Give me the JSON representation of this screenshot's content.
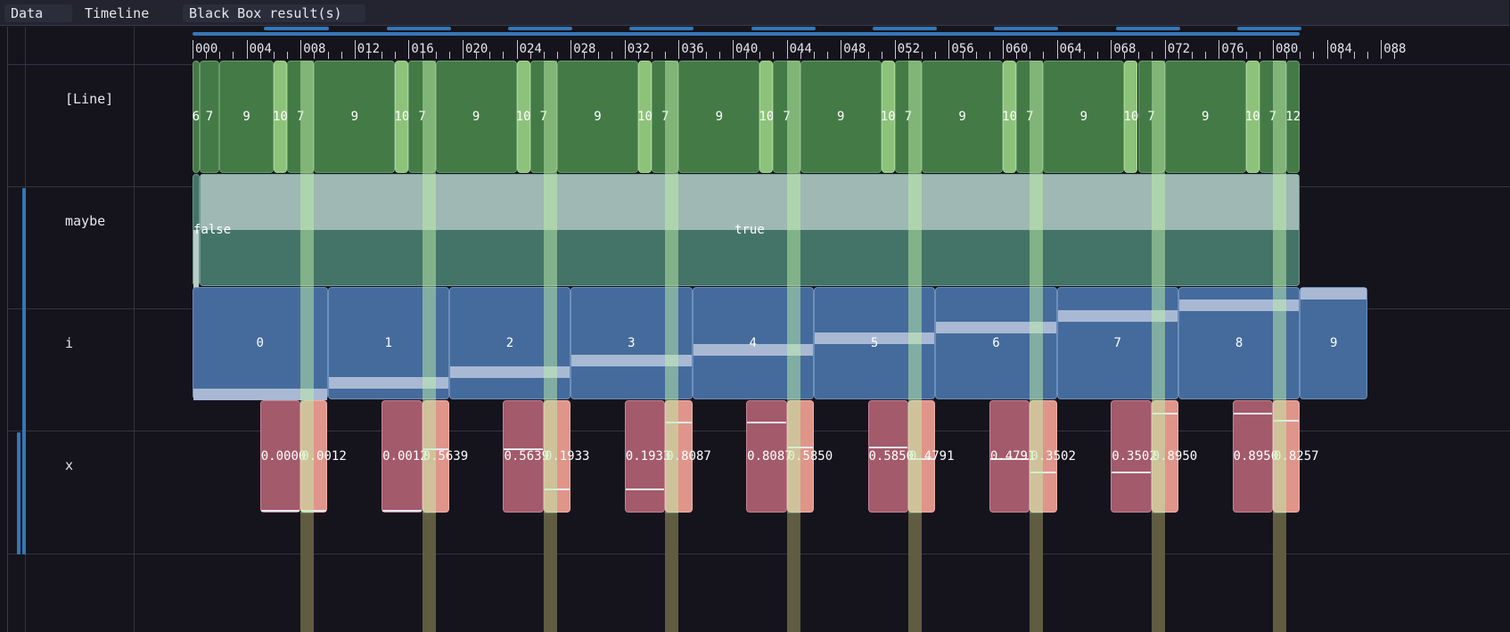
{
  "tabs": [
    {
      "label": "Data"
    },
    {
      "label": "Timeline"
    },
    {
      "label": "Black Box result(s)"
    }
  ],
  "rows": [
    {
      "label": "[Line]"
    },
    {
      "label": "maybe"
    },
    {
      "label": "i"
    },
    {
      "label": "x"
    }
  ],
  "ruler": {
    "labels": [
      "000",
      "004",
      "008",
      "012",
      "016",
      "020",
      "024",
      "028",
      "032",
      "036",
      "040",
      "044",
      "048",
      "052",
      "056",
      "060",
      "064",
      "068",
      "072",
      "076",
      "080",
      "084",
      "088"
    ]
  },
  "line_row": {
    "cells": [
      {
        "start": 0.0,
        "end": 0.5,
        "label": "6",
        "hl": false
      },
      {
        "start": 0.5,
        "end": 2.0,
        "label": "7",
        "hl": false
      },
      {
        "start": 2.0,
        "end": 6.0,
        "label": "9",
        "hl": false
      },
      {
        "start": 6.0,
        "end": 7.0,
        "label": "10",
        "hl": true
      },
      {
        "start": 7.0,
        "end": 9.0,
        "label": "7",
        "hl": false
      },
      {
        "start": 9.0,
        "end": 15.0,
        "label": "9",
        "hl": false
      },
      {
        "start": 15.0,
        "end": 16.0,
        "label": "10",
        "hl": true
      },
      {
        "start": 16.0,
        "end": 18.0,
        "label": "7",
        "hl": false
      },
      {
        "start": 18.0,
        "end": 24.0,
        "label": "9",
        "hl": false
      },
      {
        "start": 24.0,
        "end": 25.0,
        "label": "10",
        "hl": true
      },
      {
        "start": 25.0,
        "end": 27.0,
        "label": "7",
        "hl": false
      },
      {
        "start": 27.0,
        "end": 33.0,
        "label": "9",
        "hl": false
      },
      {
        "start": 33.0,
        "end": 34.0,
        "label": "10",
        "hl": true
      },
      {
        "start": 34.0,
        "end": 36.0,
        "label": "7",
        "hl": false
      },
      {
        "start": 36.0,
        "end": 42.0,
        "label": "9",
        "hl": false
      },
      {
        "start": 42.0,
        "end": 43.0,
        "label": "10",
        "hl": true
      },
      {
        "start": 43.0,
        "end": 45.0,
        "label": "7",
        "hl": false
      },
      {
        "start": 45.0,
        "end": 51.0,
        "label": "9",
        "hl": false
      },
      {
        "start": 51.0,
        "end": 52.0,
        "label": "10",
        "hl": true
      },
      {
        "start": 52.0,
        "end": 54.0,
        "label": "7",
        "hl": false
      },
      {
        "start": 54.0,
        "end": 60.0,
        "label": "9",
        "hl": false
      },
      {
        "start": 60.0,
        "end": 61.0,
        "label": "10",
        "hl": true
      },
      {
        "start": 61.0,
        "end": 63.0,
        "label": "7",
        "hl": false
      },
      {
        "start": 63.0,
        "end": 69.0,
        "label": "9",
        "hl": false
      },
      {
        "start": 69.0,
        "end": 70.0,
        "label": "10",
        "hl": true
      },
      {
        "start": 70.0,
        "end": 72.0,
        "label": "7",
        "hl": false
      },
      {
        "start": 72.0,
        "end": 78.0,
        "label": "9",
        "hl": false
      },
      {
        "start": 78.0,
        "end": 79.0,
        "label": "10",
        "hl": true
      },
      {
        "start": 79.0,
        "end": 81.0,
        "label": "7",
        "hl": false
      },
      {
        "start": 81.0,
        "end": 82.0,
        "label": "12",
        "hl": false
      }
    ]
  },
  "maybe_row": {
    "cells": [
      {
        "start": 0.0,
        "end": 0.5,
        "label": "false",
        "value": 0.0
      },
      {
        "start": 0.5,
        "end": 82.0,
        "label": "true",
        "value": 0.5
      }
    ]
  },
  "i_row": {
    "cells": [
      {
        "start": 0.0,
        "end": 10.0,
        "label": "0",
        "value": 0.0
      },
      {
        "start": 10.0,
        "end": 19.0,
        "label": "1",
        "value": 0.111
      },
      {
        "start": 19.0,
        "end": 28.0,
        "label": "2",
        "value": 0.222
      },
      {
        "start": 28.0,
        "end": 37.0,
        "label": "3",
        "value": 0.333
      },
      {
        "start": 37.0,
        "end": 46.0,
        "label": "4",
        "value": 0.444
      },
      {
        "start": 46.0,
        "end": 55.0,
        "label": "5",
        "value": 0.556
      },
      {
        "start": 55.0,
        "end": 64.0,
        "label": "6",
        "value": 0.667
      },
      {
        "start": 64.0,
        "end": 73.0,
        "label": "7",
        "value": 0.778
      },
      {
        "start": 73.0,
        "end": 82.0,
        "label": "8",
        "value": 0.889
      },
      {
        "start": 82.0,
        "end": 87.0,
        "label": "9",
        "value": 1.0
      }
    ]
  },
  "x_row": {
    "cells": [
      {
        "start": 5.0,
        "end": 8.0,
        "label": "0.0000",
        "value": 0.0,
        "hl": false
      },
      {
        "start": 8.0,
        "end": 10.0,
        "label": "0.0012",
        "value": 0.001,
        "hl": true
      },
      {
        "start": 14.0,
        "end": 17.0,
        "label": "0.0012",
        "value": 0.001,
        "hl": false
      },
      {
        "start": 17.0,
        "end": 19.0,
        "label": "0.5639",
        "value": 0.564,
        "hl": true
      },
      {
        "start": 23.0,
        "end": 26.0,
        "label": "0.5639",
        "value": 0.564,
        "hl": false
      },
      {
        "start": 26.0,
        "end": 28.0,
        "label": "0.1933",
        "value": 0.193,
        "hl": true
      },
      {
        "start": 32.0,
        "end": 35.0,
        "label": "0.1933",
        "value": 0.193,
        "hl": false
      },
      {
        "start": 35.0,
        "end": 37.0,
        "label": "0.8087",
        "value": 0.809,
        "hl": true
      },
      {
        "start": 41.0,
        "end": 44.0,
        "label": "0.8087",
        "value": 0.809,
        "hl": false
      },
      {
        "start": 44.0,
        "end": 46.0,
        "label": "0.5850",
        "value": 0.585,
        "hl": true
      },
      {
        "start": 50.0,
        "end": 53.0,
        "label": "0.5850",
        "value": 0.585,
        "hl": false
      },
      {
        "start": 53.0,
        "end": 55.0,
        "label": "0.4791",
        "value": 0.479,
        "hl": true
      },
      {
        "start": 59.0,
        "end": 62.0,
        "label": "0.4791",
        "value": 0.479,
        "hl": false
      },
      {
        "start": 62.0,
        "end": 64.0,
        "label": "0.3502",
        "value": 0.35,
        "hl": true
      },
      {
        "start": 68.0,
        "end": 71.0,
        "label": "0.3502",
        "value": 0.35,
        "hl": false
      },
      {
        "start": 71.0,
        "end": 73.0,
        "label": "0.8950",
        "value": 0.895,
        "hl": true
      },
      {
        "start": 77.0,
        "end": 80.0,
        "label": "0.8950",
        "value": 0.895,
        "hl": false
      },
      {
        "start": 80.0,
        "end": 82.0,
        "label": "0.8257",
        "value": 0.826,
        "hl": true
      }
    ]
  },
  "highlight_steps": [
    8,
    17,
    26,
    35,
    44,
    53,
    62,
    71,
    80
  ],
  "colors": {
    "line": "#447a46",
    "line_highlight": "#8dc27a",
    "maybe": "#447468",
    "i": "#456b9c",
    "x": "#a35a6a",
    "x_highlight": "#e0958a",
    "accent": "#3277b5",
    "stripe": "#bef0aa"
  }
}
